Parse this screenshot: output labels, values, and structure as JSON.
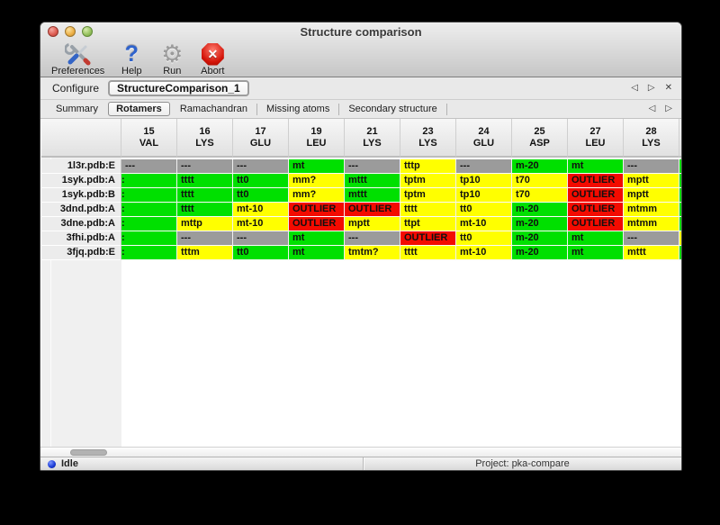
{
  "window": {
    "title": "Structure comparison"
  },
  "traffic_lights": [
    {
      "id": "close",
      "color": "red"
    },
    {
      "id": "minimize",
      "color": "yellow"
    },
    {
      "id": "zoom",
      "color": "green"
    }
  ],
  "toolbar": {
    "items": [
      {
        "id": "preferences",
        "label": "Preferences",
        "icon": "tools-icon"
      },
      {
        "id": "help",
        "label": "Help",
        "icon": "question-mark-icon"
      },
      {
        "id": "run",
        "label": "Run",
        "icon": "gear-icon"
      },
      {
        "id": "abort",
        "label": "Abort",
        "icon": "stop-x-icon"
      }
    ]
  },
  "configure": {
    "label": "Configure",
    "job_name": "StructureComparison_1",
    "nav": {
      "prev": "◁",
      "next": "▷",
      "close": "✕"
    }
  },
  "tabs": {
    "items": [
      "Summary",
      "Rotamers",
      "Ramachandran",
      "Missing atoms",
      "Secondary structure"
    ],
    "selected": "Rotamers",
    "nav": {
      "prev": "◁",
      "next": "▷"
    }
  },
  "rotamer_table": {
    "status_colors": {
      "ok": "#00e000",
      "warn": "#ffff00",
      "outlier": "#f30b00",
      "na": "#9b9b9b"
    },
    "columns": [
      {
        "num": "15",
        "res": "VAL"
      },
      {
        "num": "16",
        "res": "LYS"
      },
      {
        "num": "17",
        "res": "GLU"
      },
      {
        "num": "19",
        "res": "LEU"
      },
      {
        "num": "21",
        "res": "LYS"
      },
      {
        "num": "23",
        "res": "LYS"
      },
      {
        "num": "24",
        "res": "GLU"
      },
      {
        "num": "25",
        "res": "ASP"
      },
      {
        "num": "27",
        "res": "LEU"
      },
      {
        "num": "28",
        "res": "LYS"
      }
    ],
    "rows": [
      {
        "label": "1l3r.pdb:E",
        "overflow": "ok",
        "cells": [
          {
            "t": "---",
            "s": "na"
          },
          {
            "t": "---",
            "s": "na"
          },
          {
            "t": "---",
            "s": "na"
          },
          {
            "t": "mt",
            "s": "ok"
          },
          {
            "t": "---",
            "s": "na"
          },
          {
            "t": "tttp",
            "s": "warn"
          },
          {
            "t": "---",
            "s": "na"
          },
          {
            "t": "m-20",
            "s": "ok"
          },
          {
            "t": "mt",
            "s": "ok"
          },
          {
            "t": "---",
            "s": "na"
          }
        ]
      },
      {
        "label": "1syk.pdb:A",
        "overflow": "ok",
        "cells": [
          {
            "t": ":",
            "s": "ok",
            "clip": true
          },
          {
            "t": "tttt",
            "s": "ok"
          },
          {
            "t": "tt0",
            "s": "ok"
          },
          {
            "t": "mm?",
            "s": "warn"
          },
          {
            "t": "mttt",
            "s": "ok"
          },
          {
            "t": "tptm",
            "s": "warn"
          },
          {
            "t": "tp10",
            "s": "warn"
          },
          {
            "t": "t70",
            "s": "warn"
          },
          {
            "t": "OUTLIER",
            "s": "outlier"
          },
          {
            "t": "mptt",
            "s": "warn"
          }
        ]
      },
      {
        "label": "1syk.pdb:B",
        "overflow": "ok",
        "cells": [
          {
            "t": ":",
            "s": "ok",
            "clip": true
          },
          {
            "t": "tttt",
            "s": "ok"
          },
          {
            "t": "tt0",
            "s": "ok"
          },
          {
            "t": "mm?",
            "s": "warn"
          },
          {
            "t": "mttt",
            "s": "ok"
          },
          {
            "t": "tptm",
            "s": "warn"
          },
          {
            "t": "tp10",
            "s": "warn"
          },
          {
            "t": "t70",
            "s": "warn"
          },
          {
            "t": "OUTLIER",
            "s": "outlier"
          },
          {
            "t": "mptt",
            "s": "warn"
          }
        ]
      },
      {
        "label": "3dnd.pdb:A",
        "overflow": "ok",
        "cells": [
          {
            "t": ":",
            "s": "ok",
            "clip": true
          },
          {
            "t": "tttt",
            "s": "ok"
          },
          {
            "t": "mt-10",
            "s": "warn"
          },
          {
            "t": "OUTLIER",
            "s": "outlier"
          },
          {
            "t": "OUTLIER",
            "s": "outlier"
          },
          {
            "t": "tttt",
            "s": "warn"
          },
          {
            "t": "tt0",
            "s": "warn"
          },
          {
            "t": "m-20",
            "s": "ok"
          },
          {
            "t": "OUTLIER",
            "s": "outlier"
          },
          {
            "t": "mtmm",
            "s": "warn"
          }
        ]
      },
      {
        "label": "3dne.pdb:A",
        "overflow": "ok",
        "cells": [
          {
            "t": ":",
            "s": "ok",
            "clip": true
          },
          {
            "t": "mttp",
            "s": "warn"
          },
          {
            "t": "mt-10",
            "s": "warn"
          },
          {
            "t": "OUTLIER",
            "s": "outlier"
          },
          {
            "t": "mptt",
            "s": "warn"
          },
          {
            "t": "ttpt",
            "s": "warn"
          },
          {
            "t": "mt-10",
            "s": "warn"
          },
          {
            "t": "m-20",
            "s": "ok"
          },
          {
            "t": "OUTLIER",
            "s": "outlier"
          },
          {
            "t": "mtmm",
            "s": "warn"
          }
        ]
      },
      {
        "label": "3fhi.pdb:A",
        "overflow": "warn",
        "cells": [
          {
            "t": ":",
            "s": "ok",
            "clip": true
          },
          {
            "t": "---",
            "s": "na"
          },
          {
            "t": "---",
            "s": "na"
          },
          {
            "t": "mt",
            "s": "ok"
          },
          {
            "t": "---",
            "s": "na"
          },
          {
            "t": "OUTLIER",
            "s": "outlier"
          },
          {
            "t": "tt0",
            "s": "warn"
          },
          {
            "t": "m-20",
            "s": "ok"
          },
          {
            "t": "mt",
            "s": "ok"
          },
          {
            "t": "---",
            "s": "na"
          }
        ]
      },
      {
        "label": "3fjq.pdb:E",
        "overflow": "ok",
        "cells": [
          {
            "t": ":",
            "s": "ok",
            "clip": true
          },
          {
            "t": "tttm",
            "s": "warn"
          },
          {
            "t": "tt0",
            "s": "ok"
          },
          {
            "t": "mt",
            "s": "ok"
          },
          {
            "t": "tmtm?",
            "s": "warn"
          },
          {
            "t": "tttt",
            "s": "warn"
          },
          {
            "t": "mt-10",
            "s": "warn"
          },
          {
            "t": "m-20",
            "s": "ok"
          },
          {
            "t": "mt",
            "s": "ok"
          },
          {
            "t": "mttt",
            "s": "warn"
          }
        ]
      }
    ]
  },
  "statusbar": {
    "status": "Idle",
    "project": "Project: pka-compare"
  }
}
